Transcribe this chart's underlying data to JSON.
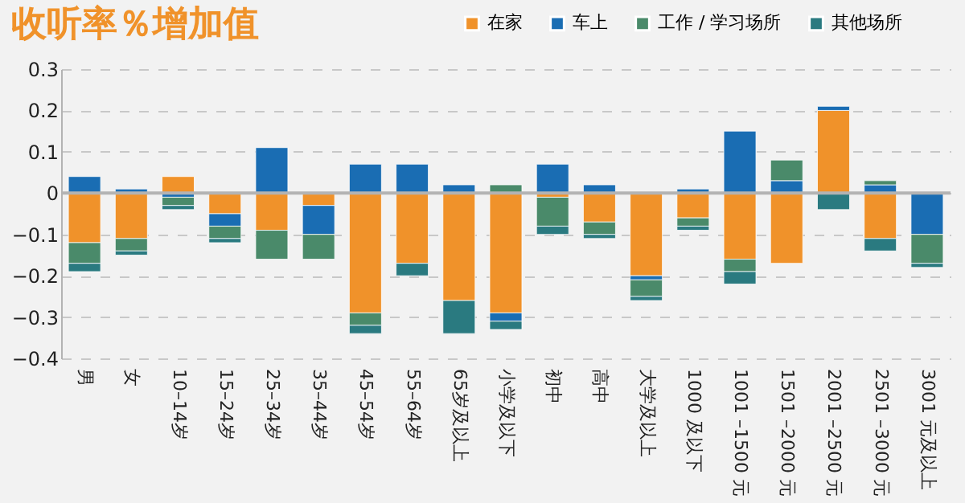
{
  "chart_data": {
    "type": "bar",
    "title": "收听率％增加值",
    "stacked": true,
    "legend": "top right",
    "grid": "y",
    "categories": [
      "男",
      "女",
      "10–14岁",
      "15–24岁",
      "25–34岁",
      "35–44岁",
      "45–54岁",
      "55–64岁",
      "65岁及以上",
      "小学及以下",
      "初中",
      "高中",
      "大学及以上",
      "1000 及以下",
      "1001 –1500 元",
      "1501 –2000 元",
      "2001 –2500 元",
      "2501 –3000 元",
      "3001 元及以上"
    ],
    "series": [
      {
        "name": "在家",
        "color": "#f0922a",
        "values": [
          -0.12,
          -0.11,
          0.04,
          -0.05,
          -0.09,
          -0.03,
          -0.29,
          -0.17,
          -0.26,
          -0.29,
          -0.01,
          -0.07,
          -0.2,
          -0.06,
          -0.16,
          -0.17,
          0.2,
          -0.11,
          0
        ]
      },
      {
        "name": "车上",
        "color": "#1a6db3",
        "values": [
          0.04,
          0.01,
          -0.01,
          -0.03,
          0.11,
          -0.07,
          0.07,
          0.07,
          0.02,
          -0.02,
          0.07,
          0.02,
          -0.01,
          0.01,
          0.15,
          0.03,
          0.01,
          0.02,
          -0.1
        ]
      },
      {
        "name": "工作 / 学习场所",
        "color": "#4a8a6a",
        "values": [
          -0.05,
          -0.03,
          -0.02,
          -0.03,
          -0.07,
          -0.06,
          -0.03,
          0,
          0,
          0.02,
          -0.07,
          -0.03,
          -0.04,
          -0.02,
          -0.03,
          0.05,
          0,
          0.01,
          -0.07
        ]
      },
      {
        "name": "其他场所",
        "color": "#2a7a80",
        "values": [
          -0.02,
          -0.01,
          -0.01,
          -0.01,
          0,
          0,
          -0.02,
          -0.03,
          -0.08,
          -0.02,
          -0.02,
          -0.01,
          -0.01,
          -0.01,
          -0.03,
          0,
          -0.04,
          -0.03,
          -0.01
        ]
      }
    ],
    "ylim": [
      -0.4,
      0.3
    ],
    "yticks": [
      -0.4,
      -0.3,
      -0.2,
      -0.1,
      0,
      0.1,
      0.2,
      0.3
    ],
    "ref_lines": [
      {
        "axis": "y",
        "value": 0,
        "color": "#b3b3b3"
      }
    ]
  }
}
